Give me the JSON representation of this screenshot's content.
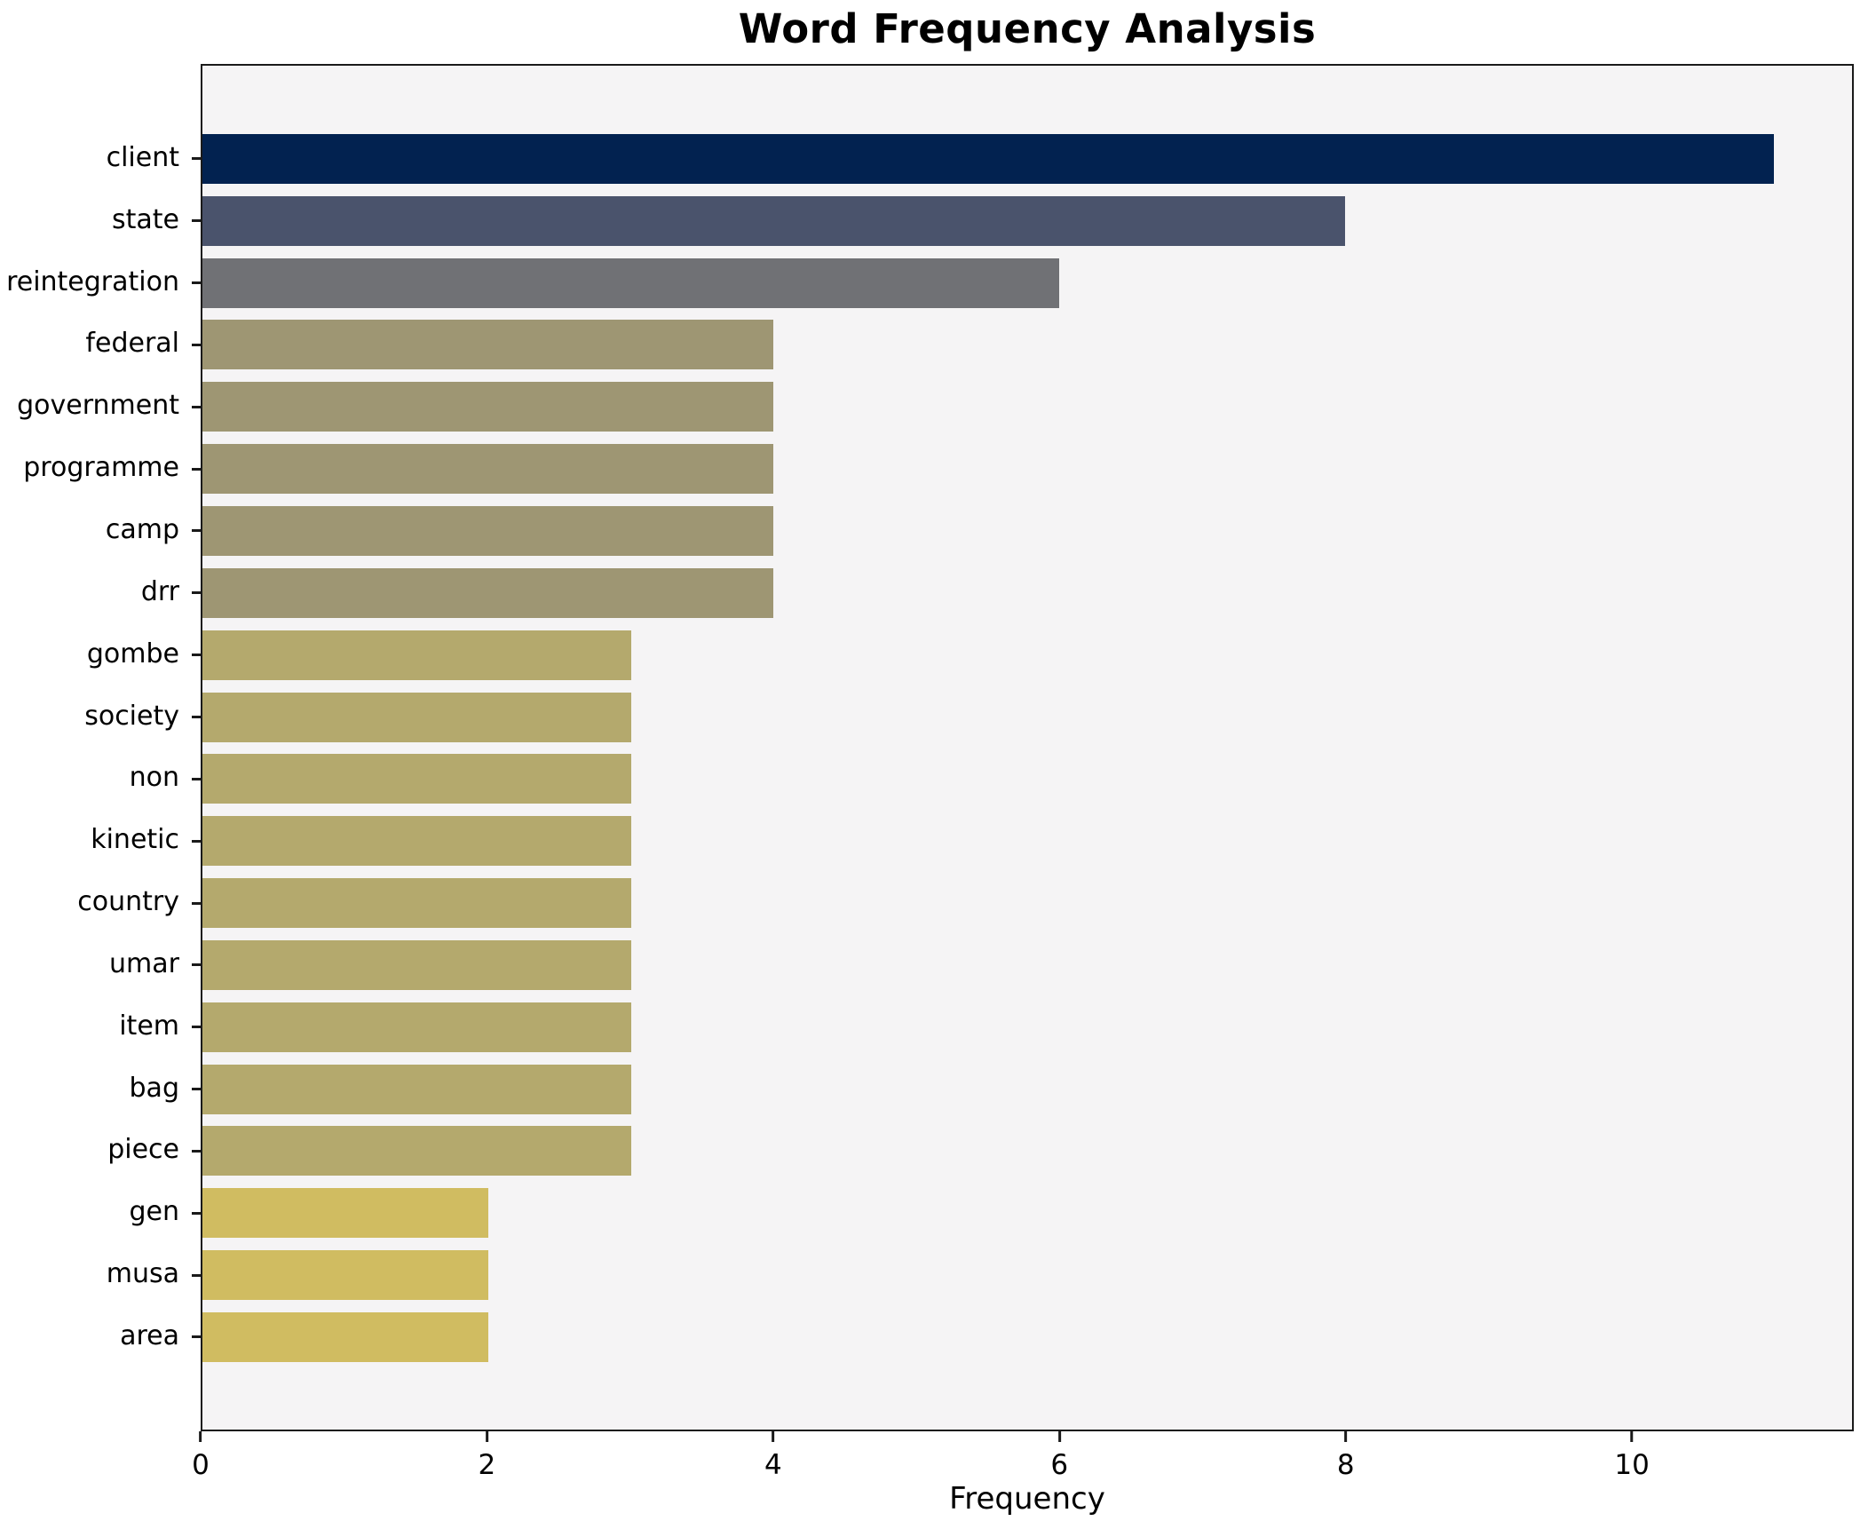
{
  "figure": {
    "background": "#ffffff"
  },
  "chart_data": {
    "type": "bar",
    "orientation": "horizontal",
    "title": "Word Frequency Analysis",
    "xlabel": "Frequency",
    "ylabel": "",
    "categories": [
      "client",
      "state",
      "reintegration",
      "federal",
      "government",
      "programme",
      "camp",
      "drr",
      "gombe",
      "society",
      "non",
      "kinetic",
      "country",
      "umar",
      "item",
      "bag",
      "piece",
      "gen",
      "musa",
      "area"
    ],
    "values": [
      11,
      8,
      6,
      4,
      4,
      4,
      4,
      4,
      3,
      3,
      3,
      3,
      3,
      3,
      3,
      3,
      3,
      2,
      2,
      2
    ],
    "bar_colors": [
      "#022250",
      "#4a536c",
      "#707175",
      "#9e9673",
      "#9e9673",
      "#9e9673",
      "#9e9673",
      "#9e9673",
      "#b4a96d",
      "#b4a96d",
      "#b4a96d",
      "#b4a96d",
      "#b4a96d",
      "#b4a96d",
      "#b4a96d",
      "#b4a96d",
      "#b4a96d",
      "#d0bc61",
      "#d0bc61",
      "#d0bc61"
    ],
    "xticks": [
      0,
      2,
      4,
      6,
      8,
      10
    ],
    "xlim": [
      0,
      11.55
    ],
    "grid": false,
    "legend": null,
    "plot_background": "#f5f4f5",
    "spine_color": "#1a1a1a",
    "text_color": "#000000"
  }
}
